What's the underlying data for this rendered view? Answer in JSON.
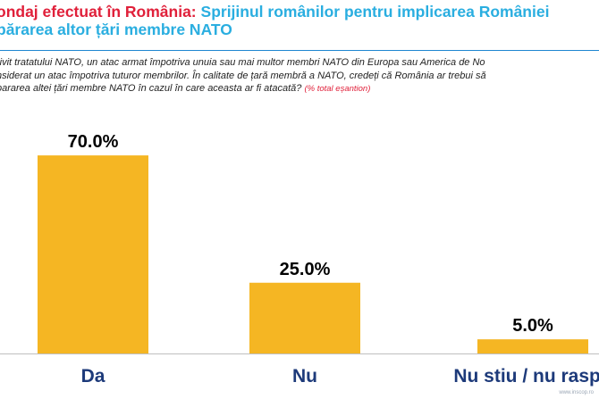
{
  "header": {
    "title_red": "ondaj efectuat în România:",
    "title_blue_line1": "Sprijinul românilor pentru implicarea României",
    "title_blue_line2": "părarea altor țări membre NATO"
  },
  "question": {
    "line1": "rivit tratatului NATO, un atac armat împotriva unuia sau mai multor membri NATO din Europa sau America de No",
    "line2": "nsiderat un atac împotriva tuturor membrilor. În calitate de țară membră a NATO, credeți că România ar trebui să",
    "line3": "pararea altei țări membre NATO în cazul în care aceasta ar fi atacată?",
    "sample_note": "(% total eșantion)"
  },
  "chart_data": {
    "type": "bar",
    "title": "",
    "categories": [
      "Da",
      "Nu",
      "Nu stiu / nu raspu"
    ],
    "values": [
      70.0,
      25.0,
      5.0
    ],
    "value_labels": [
      "70.0%",
      "25.0%",
      "5.0%"
    ],
    "ylim": [
      0,
      100
    ],
    "grid": false,
    "legend": "none",
    "colors": {
      "bar": "#f5b623",
      "axis": "#bfbfbf",
      "category_text": "#1d3a7a"
    }
  },
  "watermark": "www.inscop.ro"
}
